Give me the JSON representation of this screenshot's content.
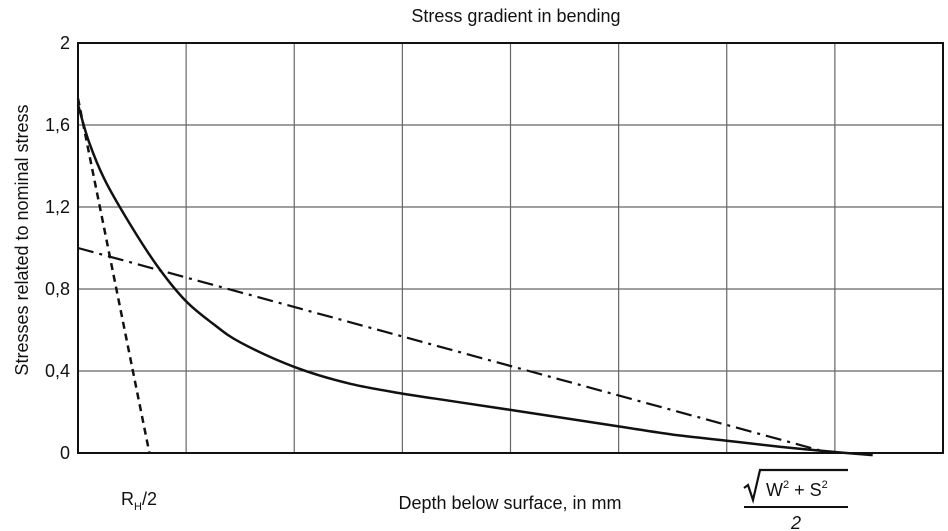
{
  "chart_data": {
    "type": "line",
    "title": "Stress gradient in bending",
    "ylabel": "Stresses related to nominal stress",
    "xlabel": "Depth below surface, in mm",
    "ylim": [
      0,
      2
    ],
    "xlim": [
      0,
      8
    ],
    "y_ticks": [
      "0",
      "0,4",
      "0,8",
      "1,2",
      "1,6",
      "2"
    ],
    "y_tick_values": [
      0,
      0.4,
      0.8,
      1.2,
      1.6,
      2.0
    ],
    "x_annotations": {
      "rh": {
        "main": "R",
        "sub": "H",
        "suffix": "/2"
      },
      "formula": {
        "numerator_w": "W",
        "numerator_plus": " + S",
        "sup": "2",
        "denominator": "2"
      }
    },
    "grid": true,
    "series": [
      {
        "style": "solid",
        "x": [
          0,
          0.1,
          0.25,
          0.5,
          0.75,
          1.0,
          1.25,
          1.5,
          2.0,
          2.5,
          3.0,
          3.5,
          4.0,
          4.5,
          5.0,
          5.5,
          6.0,
          6.5,
          7.0,
          7.35
        ],
        "y": [
          1.7,
          1.52,
          1.33,
          1.1,
          0.9,
          0.74,
          0.63,
          0.54,
          0.42,
          0.34,
          0.29,
          0.25,
          0.21,
          0.17,
          0.13,
          0.09,
          0.06,
          0.03,
          0.005,
          -0.01
        ]
      },
      {
        "style": "dashed",
        "x": [
          0,
          0.66
        ],
        "y": [
          1.73,
          0
        ]
      },
      {
        "style": "dashdot",
        "x": [
          0,
          6.95
        ],
        "y": [
          1.0,
          0
        ]
      }
    ]
  }
}
